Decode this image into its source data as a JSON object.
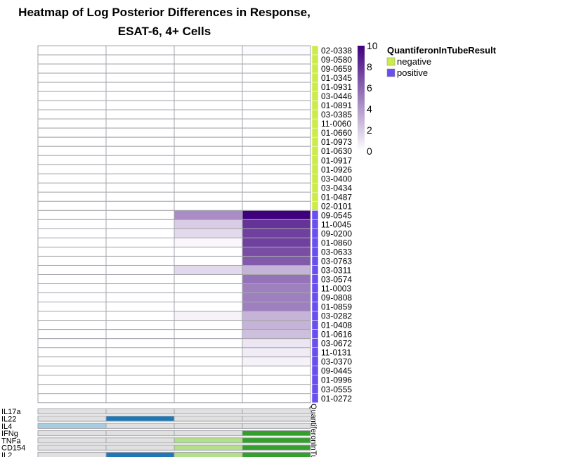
{
  "chart_data": {
    "type": "heatmap",
    "title_line1": "Heatmap of Log Posterior Differences in Response,",
    "title_line2": "ESAT-6, 4+ Cells",
    "rows": [
      "02-0338",
      "09-0580",
      "09-0659",
      "01-0345",
      "01-0931",
      "03-0446",
      "01-0891",
      "03-0385",
      "11-0060",
      "01-0660",
      "01-0973",
      "01-0630",
      "01-0917",
      "01-0926",
      "03-0400",
      "03-0434",
      "01-0487",
      "02-0101",
      "09-0545",
      "11-0045",
      "09-0200",
      "01-0860",
      "03-0633",
      "03-0763",
      "03-0311",
      "03-0574",
      "11-0003",
      "09-0808",
      "01-0859",
      "03-0282",
      "01-0408",
      "01-0616",
      "03-0672",
      "11-0131",
      "03-0370",
      "09-0445",
      "01-0996",
      "03-0555",
      "01-0272"
    ],
    "group_annotation": {
      "label": "QuantiferonInTu",
      "values": [
        "negative",
        "negative",
        "negative",
        "negative",
        "negative",
        "negative",
        "negative",
        "negative",
        "negative",
        "negative",
        "negative",
        "negative",
        "negative",
        "negative",
        "negative",
        "negative",
        "negative",
        "negative",
        "positive",
        "positive",
        "positive",
        "positive",
        "positive",
        "positive",
        "positive",
        "positive",
        "positive",
        "positive",
        "positive",
        "positive",
        "positive",
        "positive",
        "positive",
        "positive",
        "positive",
        "positive",
        "positive",
        "positive",
        "positive"
      ]
    },
    "values": [
      [
        0,
        0,
        0,
        0.2
      ],
      [
        0,
        0,
        0,
        0
      ],
      [
        0,
        0,
        0,
        0
      ],
      [
        0,
        0,
        0,
        0
      ],
      [
        0,
        0,
        0,
        0
      ],
      [
        0,
        0,
        0,
        0
      ],
      [
        0,
        0,
        0,
        0
      ],
      [
        0,
        0,
        0,
        0
      ],
      [
        0,
        0,
        0,
        0
      ],
      [
        0,
        0,
        0,
        0
      ],
      [
        0,
        0,
        0,
        0
      ],
      [
        0,
        0,
        0,
        0
      ],
      [
        0,
        0,
        0,
        0
      ],
      [
        0,
        0,
        0,
        0
      ],
      [
        0,
        0,
        0,
        0
      ],
      [
        0,
        0,
        0,
        0
      ],
      [
        0,
        0,
        0,
        0
      ],
      [
        0,
        0,
        0,
        0
      ],
      [
        0,
        0,
        4.5,
        10
      ],
      [
        0,
        0,
        2,
        8
      ],
      [
        0,
        0,
        1.5,
        7.5
      ],
      [
        0,
        0,
        0.3,
        7.5
      ],
      [
        0,
        0,
        0,
        7
      ],
      [
        0,
        0,
        0,
        6.5
      ],
      [
        0,
        0,
        1.5,
        3
      ],
      [
        0,
        0,
        0,
        5.5
      ],
      [
        0,
        0,
        0,
        5
      ],
      [
        0,
        0,
        0,
        5
      ],
      [
        0,
        0,
        0,
        5
      ],
      [
        0,
        0,
        0.5,
        3
      ],
      [
        0,
        0,
        0,
        3
      ],
      [
        0,
        0,
        0,
        2.5
      ],
      [
        0,
        0,
        0,
        1
      ],
      [
        0,
        0,
        0,
        0.8
      ],
      [
        0,
        0,
        0,
        0.5
      ],
      [
        0,
        0,
        0,
        0
      ],
      [
        0,
        0,
        0,
        0
      ],
      [
        0,
        0,
        0,
        0
      ],
      [
        0,
        0,
        0,
        0
      ]
    ],
    "cytokines": [
      "IL17a",
      "IL22",
      "IL4",
      "IFNg",
      "TNFa",
      "CD154",
      "IL2"
    ],
    "cytokine_matrix": [
      [
        0,
        0,
        0,
        0
      ],
      [
        0,
        1,
        0,
        0
      ],
      [
        1,
        0,
        0,
        0
      ],
      [
        0,
        0,
        0,
        1
      ],
      [
        0,
        0,
        1,
        1
      ],
      [
        0,
        0,
        1,
        1
      ],
      [
        0,
        1,
        1,
        1
      ]
    ],
    "cytokine_colors": [
      "#e0e0e0",
      "#a6cee3",
      "#1f78b4",
      "#b2df8a",
      "#33a02c"
    ],
    "colorbar": {
      "min": 0,
      "max": 10,
      "ticks": [
        0,
        2,
        4,
        6,
        8,
        10
      ],
      "low": "#ffffff",
      "high": "#3f007d"
    },
    "legend": {
      "title": "QuantiferonInTubeResult",
      "entries": [
        {
          "label": "negative",
          "color": "#ccec4a"
        },
        {
          "label": "positive",
          "color": "#6a4ff0"
        }
      ]
    }
  }
}
